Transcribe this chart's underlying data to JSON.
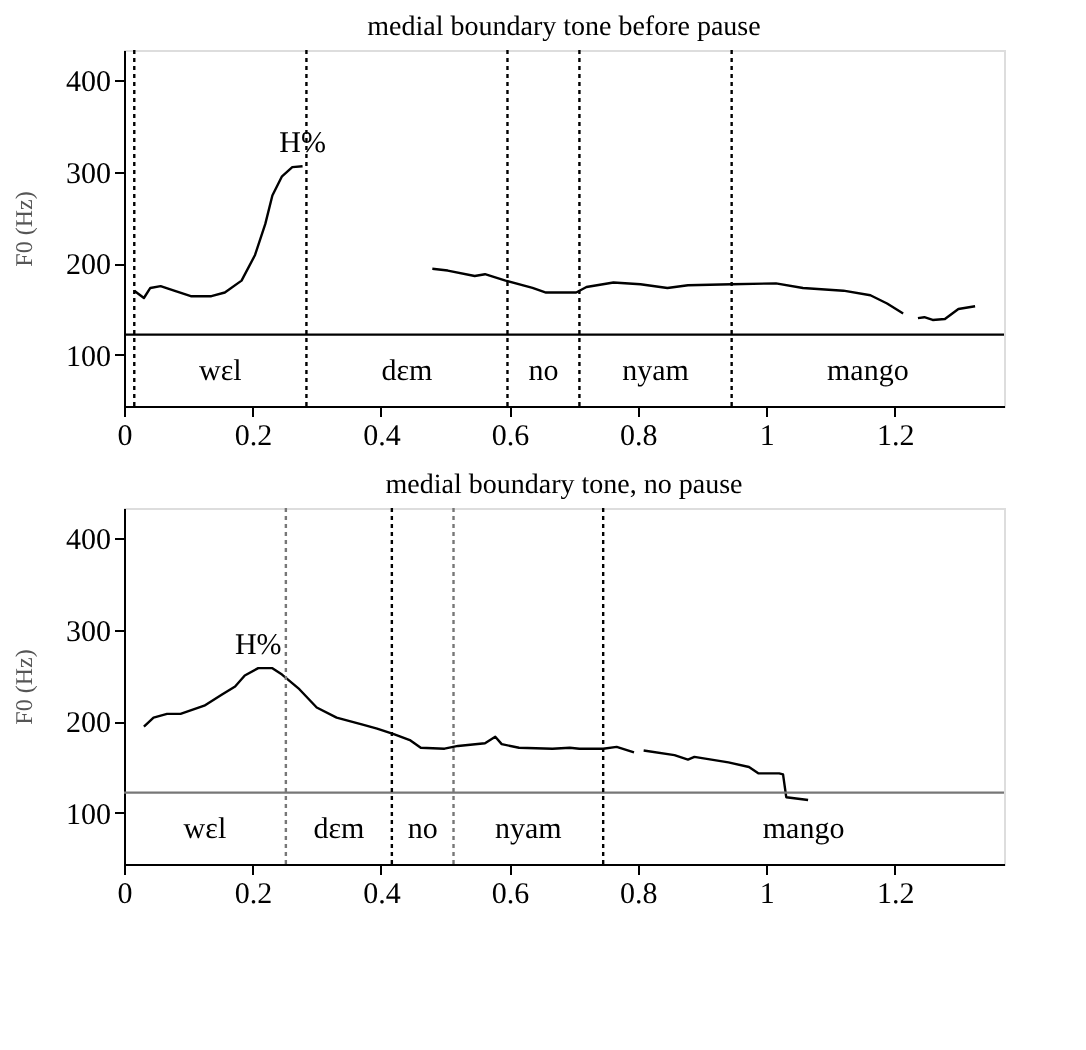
{
  "chart_data": [
    {
      "type": "line",
      "title": "medial boundary tone before pause",
      "ylabel": "F0 (Hz)",
      "xlim": [
        0,
        1.37
      ],
      "ylim": [
        44,
        433
      ],
      "xticks": [
        0,
        0.2,
        0.4,
        0.6,
        0.8,
        1,
        1.2
      ],
      "yticks": [
        100,
        200,
        300,
        400
      ],
      "grid": false,
      "line_style": "solid",
      "series": [
        {
          "color": "#000000",
          "x": [
            0.016,
            0.031,
            0.041,
            0.057,
            0.078,
            0.104,
            0.136,
            0.157,
            0.183,
            0.204,
            0.22,
            0.231,
            0.246,
            0.262,
            0.278,
            0.38,
            0.48,
            0.504,
            0.546,
            0.562,
            0.594,
            0.636,
            0.657,
            0.704,
            0.72,
            0.762,
            0.804,
            0.846,
            0.878,
            0.946,
            1.015,
            1.057,
            1.12,
            1.162,
            1.188,
            1.213,
            1.225,
            1.236,
            1.246,
            1.259,
            1.278,
            1.299,
            1.325
          ],
          "values": [
            170,
            162,
            173,
            175,
            170,
            164,
            164,
            168,
            181,
            209,
            243,
            274,
            295,
            305,
            306,
            null,
            194,
            192,
            186,
            188,
            181,
            173,
            168,
            168,
            174,
            179,
            177,
            173,
            176,
            177,
            178,
            173,
            170,
            165,
            156,
            145,
            null,
            140,
            141,
            138,
            139,
            150,
            153
          ]
        }
      ],
      "ref_lines": [
        {
          "axis": "y",
          "value": 122,
          "color": "#000000",
          "line_style": "solid"
        },
        {
          "axis": "x",
          "value": 0.016,
          "color": "#000000",
          "line_style": "dotted"
        },
        {
          "axis": "x",
          "value": 0.284,
          "color": "#000000",
          "line_style": "dotted"
        },
        {
          "axis": "x",
          "value": 0.597,
          "color": "#000000",
          "line_style": "dotted"
        },
        {
          "axis": "x",
          "value": 0.709,
          "color": "#000000",
          "line_style": "dotted"
        },
        {
          "axis": "x",
          "value": 0.946,
          "color": "#000000",
          "line_style": "dotted"
        }
      ],
      "annotations": [
        "H%",
        "wɛl",
        "dɛm",
        "no",
        "nyam",
        "mango"
      ]
    },
    {
      "type": "line",
      "title": "medial boundary tone, no pause",
      "ylabel": "F0 (Hz)",
      "xlim": [
        0,
        1.37
      ],
      "ylim": [
        44,
        433
      ],
      "xticks": [
        0,
        0.2,
        0.4,
        0.6,
        0.8,
        1,
        1.2
      ],
      "yticks": [
        100,
        200,
        300,
        400
      ],
      "grid": false,
      "line_style": "solid",
      "series": [
        {
          "color": "#000000",
          "x": [
            0.031,
            0.046,
            0.067,
            0.088,
            0.125,
            0.152,
            0.173,
            0.188,
            0.209,
            0.231,
            0.246,
            0.273,
            0.3,
            0.331,
            0.373,
            0.394,
            0.42,
            0.446,
            0.462,
            0.499,
            0.52,
            0.562,
            0.578,
            0.588,
            0.615,
            0.667,
            0.694,
            0.709,
            0.746,
            0.767,
            0.794,
            0.8,
            0.809,
            0.857,
            0.878,
            0.888,
            0.941,
            0.973,
            0.988,
            1.02,
            1.026,
            1.031,
            1.065
          ],
          "values": [
            194,
            204,
            208,
            208,
            217,
            229,
            238,
            250,
            258,
            258,
            251,
            235,
            215,
            204,
            196,
            192,
            186,
            179,
            171,
            170,
            173,
            176,
            183,
            175,
            171,
            170,
            171,
            170,
            170,
            172,
            166,
            null,
            168,
            163,
            158,
            161,
            155,
            150,
            143,
            143,
            142,
            117,
            114
          ]
        }
      ],
      "ref_lines": [
        {
          "axis": "y",
          "value": 122,
          "color": "#777777",
          "line_style": "solid"
        },
        {
          "axis": "x",
          "value": 0.252,
          "color": "#777777",
          "line_style": "dotted"
        },
        {
          "axis": "x",
          "value": 0.417,
          "color": "#000000",
          "line_style": "dotted"
        },
        {
          "axis": "x",
          "value": 0.513,
          "color": "#777777",
          "line_style": "dotted"
        },
        {
          "axis": "x",
          "value": 0.746,
          "color": "#000000",
          "line_style": "dotted"
        }
      ],
      "annotations": [
        "H%",
        "wɛl",
        "dɛm",
        "no",
        "nyam",
        "mango"
      ]
    }
  ]
}
